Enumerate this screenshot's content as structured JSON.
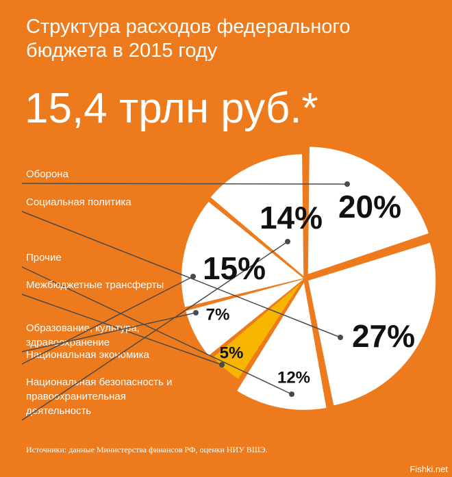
{
  "title": "Структура расходов федерального бюджета в 2015 году",
  "total": "15,4 трлн руб.*",
  "source": "Источники: данные Министерства финансов РФ, оценки НИУ ВШЭ.",
  "watermark": "Fishki.net",
  "colors": {
    "background": "#ED7A1C",
    "slice": "#FFFFFF",
    "highlight_slice": "#F7B500",
    "leader": "#4A4A4A",
    "text_dark": "#111111"
  },
  "chart_data": {
    "type": "pie",
    "slices": [
      {
        "label": "Оборона",
        "value": 20,
        "pct_text": "20%"
      },
      {
        "label": "Социальная политика",
        "value": 27,
        "pct_text": "27%"
      },
      {
        "label": "Прочие",
        "value": 12,
        "pct_text": "12%"
      },
      {
        "label": "Межбюджетные трансферты",
        "value": 5,
        "pct_text": "5%",
        "highlight": true
      },
      {
        "label": "Образование, культура, здравоохранение",
        "value": 7,
        "pct_text": "7%"
      },
      {
        "label": "Национальная экономика",
        "value": 15,
        "pct_text": "15%"
      },
      {
        "label": "Национальная безопасность и правоохранительная деятельность",
        "value": 14,
        "pct_text": "14%"
      }
    ]
  }
}
